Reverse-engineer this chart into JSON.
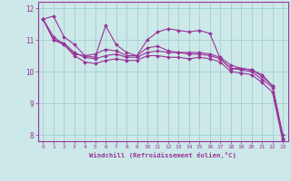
{
  "background_color": "#cce8e8",
  "grid_color": "#99cccc",
  "line_color": "#993399",
  "marker_color": "#993399",
  "xlabel": "Windchill (Refroidissement éolien,°C)",
  "xlabel_color": "#993399",
  "tick_color": "#993399",
  "xlim": [
    -0.5,
    23.5
  ],
  "ylim": [
    7.8,
    12.2
  ],
  "yticks": [
    8,
    9,
    10,
    11,
    12
  ],
  "xticks": [
    0,
    1,
    2,
    3,
    4,
    5,
    6,
    7,
    8,
    9,
    10,
    11,
    12,
    13,
    14,
    15,
    16,
    17,
    18,
    19,
    20,
    21,
    22,
    23
  ],
  "series": [
    [
      11.65,
      11.75,
      11.1,
      10.85,
      10.5,
      10.45,
      11.45,
      10.85,
      10.6,
      10.5,
      11.0,
      11.25,
      11.35,
      11.3,
      11.25,
      11.3,
      11.2,
      10.4,
      10.1,
      10.1,
      10.05,
      9.85,
      9.55,
      7.9
    ],
    [
      11.65,
      11.1,
      10.85,
      10.55,
      10.5,
      10.55,
      10.7,
      10.65,
      10.5,
      10.5,
      10.75,
      10.8,
      10.65,
      10.6,
      10.6,
      10.6,
      10.55,
      10.45,
      10.2,
      10.1,
      10.05,
      9.9,
      9.55,
      8.0
    ],
    [
      11.65,
      11.0,
      10.9,
      10.6,
      10.45,
      10.4,
      10.5,
      10.55,
      10.45,
      10.45,
      10.6,
      10.65,
      10.6,
      10.6,
      10.55,
      10.55,
      10.5,
      10.4,
      10.1,
      10.05,
      10.0,
      9.75,
      9.5,
      7.85
    ],
    [
      11.65,
      11.0,
      10.85,
      10.5,
      10.3,
      10.25,
      10.35,
      10.4,
      10.35,
      10.35,
      10.5,
      10.5,
      10.45,
      10.45,
      10.4,
      10.45,
      10.4,
      10.3,
      10.0,
      9.95,
      9.9,
      9.65,
      9.35,
      7.8
    ]
  ]
}
